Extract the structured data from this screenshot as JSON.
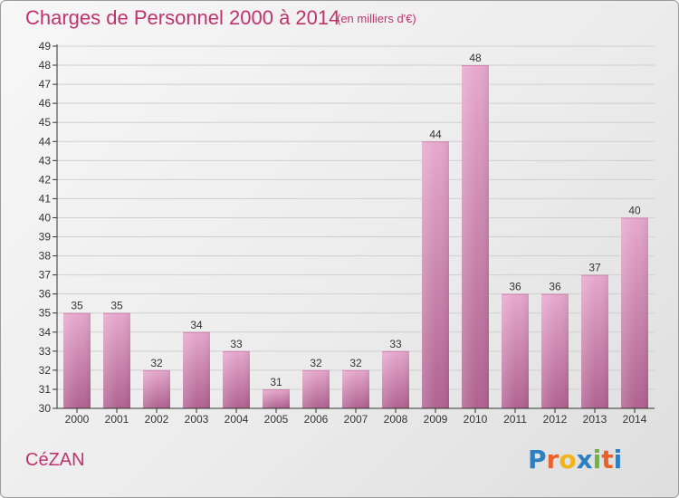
{
  "header": {
    "title": "Charges de Personnel 2000 à 2014",
    "unit": "(en milliers d'€)"
  },
  "footer": {
    "commune": "CéZAN",
    "logo_letters": [
      "P",
      "r",
      "o",
      "x",
      "i",
      "t",
      "i"
    ],
    "logo_colors": [
      "#2d7fc1",
      "#e9622a",
      "#f3b31b",
      "#2d7fc1",
      "#6eb43f",
      "#e9622a",
      "#2d7fc1"
    ]
  },
  "colors": {
    "accent": "#c0336e",
    "bar_top": "#e6a8cd",
    "bar_bottom": "#b0628f",
    "axis": "#333333",
    "grid": "#cfcfcf"
  },
  "chart_data": {
    "type": "bar",
    "categories": [
      "2000",
      "2001",
      "2002",
      "2003",
      "2004",
      "2005",
      "2006",
      "2007",
      "2008",
      "2009",
      "2010",
      "2011",
      "2012",
      "2013",
      "2014"
    ],
    "values": [
      35,
      35,
      32,
      34,
      33,
      31,
      32,
      32,
      33,
      44,
      48,
      36,
      36,
      37,
      40
    ],
    "title": "Charges de Personnel 2000 à 2014",
    "ylim": [
      30,
      49
    ],
    "yticks": [
      30,
      31,
      32,
      33,
      34,
      35,
      36,
      37,
      38,
      39,
      40,
      41,
      42,
      43,
      44,
      45,
      46,
      47,
      48,
      49
    ],
    "grid": true,
    "data_labels": true
  }
}
